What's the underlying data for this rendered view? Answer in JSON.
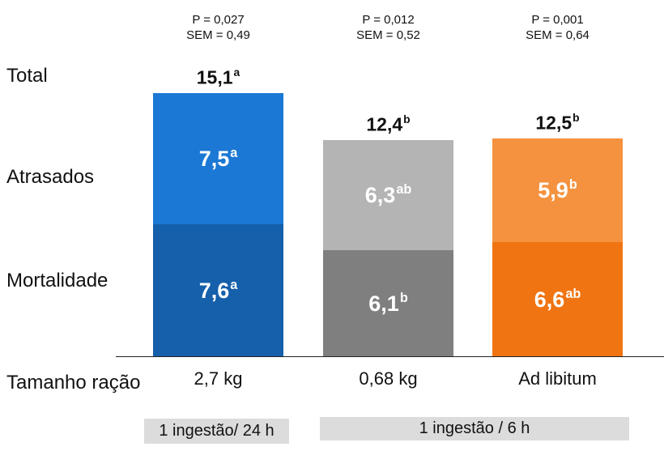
{
  "row_labels": {
    "total": "Total",
    "atrasados": "Atrasados",
    "mortalidade": "Mortalidade",
    "tamanho": "Tamanho ração"
  },
  "chart_data": {
    "type": "bar",
    "stacked": true,
    "categories": [
      "2,7 kg",
      "0,68 kg",
      "Ad libitum"
    ],
    "series": [
      {
        "name": "Mortalidade",
        "values": [
          7.6,
          6.1,
          6.6
        ],
        "labels": [
          "7,6",
          "6,1",
          "6,6"
        ],
        "sup": [
          "a",
          "b",
          "ab"
        ]
      },
      {
        "name": "Atrasados",
        "values": [
          7.5,
          6.3,
          5.9
        ],
        "labels": [
          "7,5",
          "6,3",
          "5,9"
        ],
        "sup": [
          "a",
          "ab",
          "b"
        ]
      }
    ],
    "totals": {
      "values": [
        15.1,
        12.4,
        12.5
      ],
      "labels": [
        "15,1",
        "12,4",
        "12,5"
      ],
      "sup": [
        "a",
        "b",
        "b"
      ]
    },
    "p_values": [
      "P = 0,027",
      "P = 0,012",
      "P = 0,001"
    ],
    "sem": [
      "SEM = 0,49",
      "SEM = 0,52",
      "SEM = 0,64"
    ],
    "ylim": [
      0,
      15.1
    ],
    "grid": false,
    "colors": [
      {
        "mortalidade": "#155fab",
        "atrasados": "#1b78d4"
      },
      {
        "mortalidade": "#7f7f7f",
        "atrasados": "#b4b4b4"
      },
      {
        "mortalidade": "#f07411",
        "atrasados": "#f5923f"
      }
    ]
  },
  "feeding": [
    "1 ingestão/ 24 h",
    "1 ingestão / 6 h"
  ]
}
